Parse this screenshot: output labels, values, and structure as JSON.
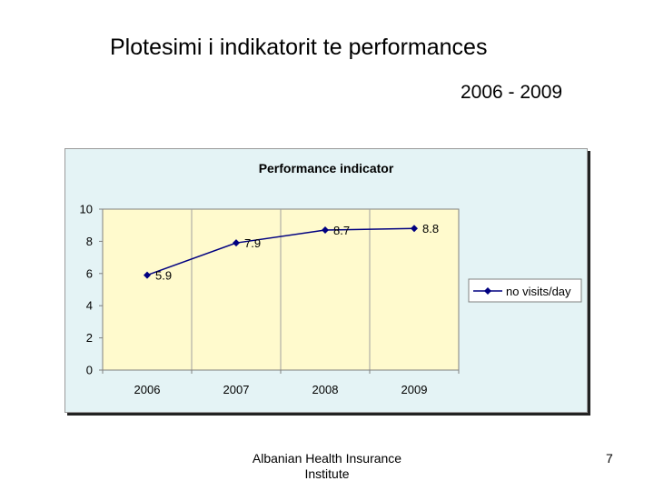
{
  "slide": {
    "title": "Plotesimi i indikatorit te performances",
    "subtitle": "2006 - 2009",
    "footer": "Albanian Health Insurance Institute",
    "page_number": "7"
  },
  "chart_data": {
    "type": "line",
    "title": "Performance indicator",
    "xlabel": "",
    "ylabel": "",
    "categories": [
      "2006",
      "2007",
      "2008",
      "2009"
    ],
    "series": [
      {
        "name": "no visits/day",
        "values": [
          5.9,
          7.9,
          8.7,
          8.8
        ],
        "labels": [
          "5.9",
          "7.9",
          "8.7",
          "8.8"
        ]
      }
    ],
    "ylim": [
      0,
      10
    ],
    "yticks": [
      0,
      2,
      4,
      6,
      8,
      10
    ],
    "grid": "vertical",
    "legend": "right",
    "colors": {
      "line": "#000080",
      "plot_area": "#fffacd",
      "chart_area": "#e4f3f5",
      "grid": "#a0a0a0"
    }
  }
}
